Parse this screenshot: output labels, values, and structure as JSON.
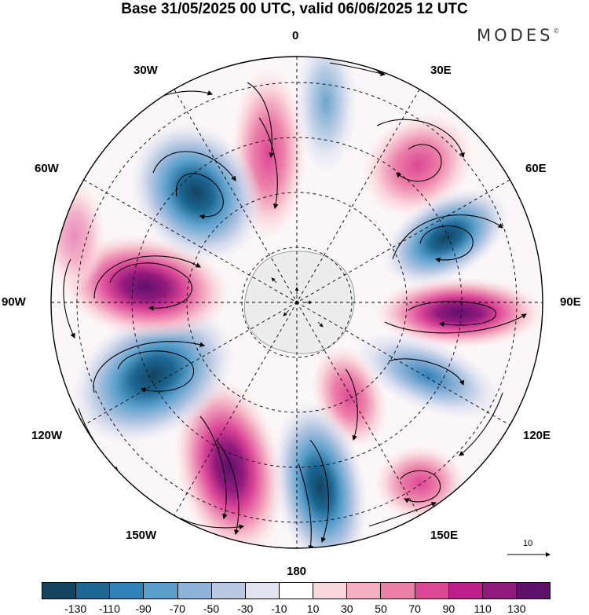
{
  "title": "Base 31/05/2025 00 UTC, valid 06/06/2025 12 UTC",
  "logo": "MODES",
  "logo_mark": "©",
  "longitude_labels": {
    "lon_0": "0",
    "lon_30e": "30E",
    "lon_60e": "60E",
    "lon_90e": "90E",
    "lon_120e": "120E",
    "lon_150e": "150E",
    "lon_180": "180",
    "lon_150w": "150W",
    "lon_120w": "120W",
    "lon_90w": "90W",
    "lon_60w": "60W",
    "lon_30w": "30W"
  },
  "vector_scale": "10",
  "colorbar": {
    "colors": [
      "#13435f",
      "#1c6793",
      "#2e82b8",
      "#5a9fcb",
      "#8eb3d8",
      "#b9c8e2",
      "#e1e3f1",
      "#ffffff",
      "#f9d6dc",
      "#f4afc2",
      "#ec7fa8",
      "#dc4796",
      "#bf1f8b",
      "#921a7d",
      "#5e116a"
    ],
    "ticks": [
      "-130",
      "-110",
      "-90",
      "-70",
      "-50",
      "-30",
      "-10",
      "10",
      "30",
      "50",
      "70",
      "90",
      "110",
      "130"
    ]
  }
}
